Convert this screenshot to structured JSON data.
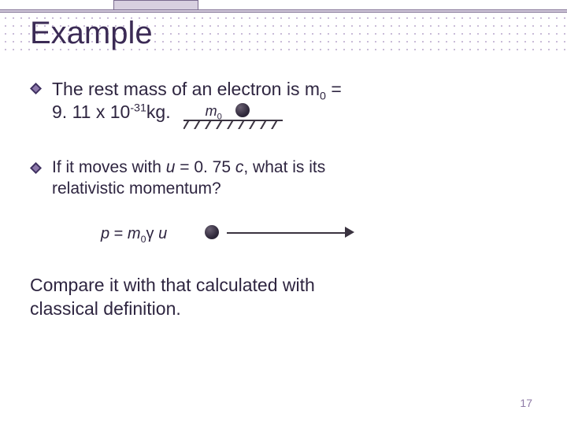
{
  "slide": {
    "title": "Example",
    "slide_number": "17"
  },
  "bullet1": {
    "line1_part1": "The rest mass of an electron is m",
    "line1_sub": "0",
    "line1_part2": " = ",
    "line2_part1": "9. 11 x 10",
    "line2_sup": "-31",
    "line2_part2": "kg."
  },
  "rest_diagram": {
    "label_m": "m",
    "label_sub": "0",
    "hatches": 9
  },
  "bullet2": {
    "part1": "If it moves with ",
    "u": "u",
    "part2": " = 0. 75 ",
    "c": "c",
    "part3": ", what is its",
    "line2": "relativistic momentum?"
  },
  "formula": {
    "p": "p",
    "eq": " = ",
    "m": "m",
    "zero": "0",
    "gamma": "γ",
    "space": " ",
    "u": "u"
  },
  "compare": {
    "line1": "Compare it with that calculated with",
    "line2": "classical definition."
  },
  "colors": {
    "text": "#2e2540",
    "title": "#3b2b55",
    "accent_bar": "#d8d0e0",
    "dots": "#c9bcd8"
  }
}
